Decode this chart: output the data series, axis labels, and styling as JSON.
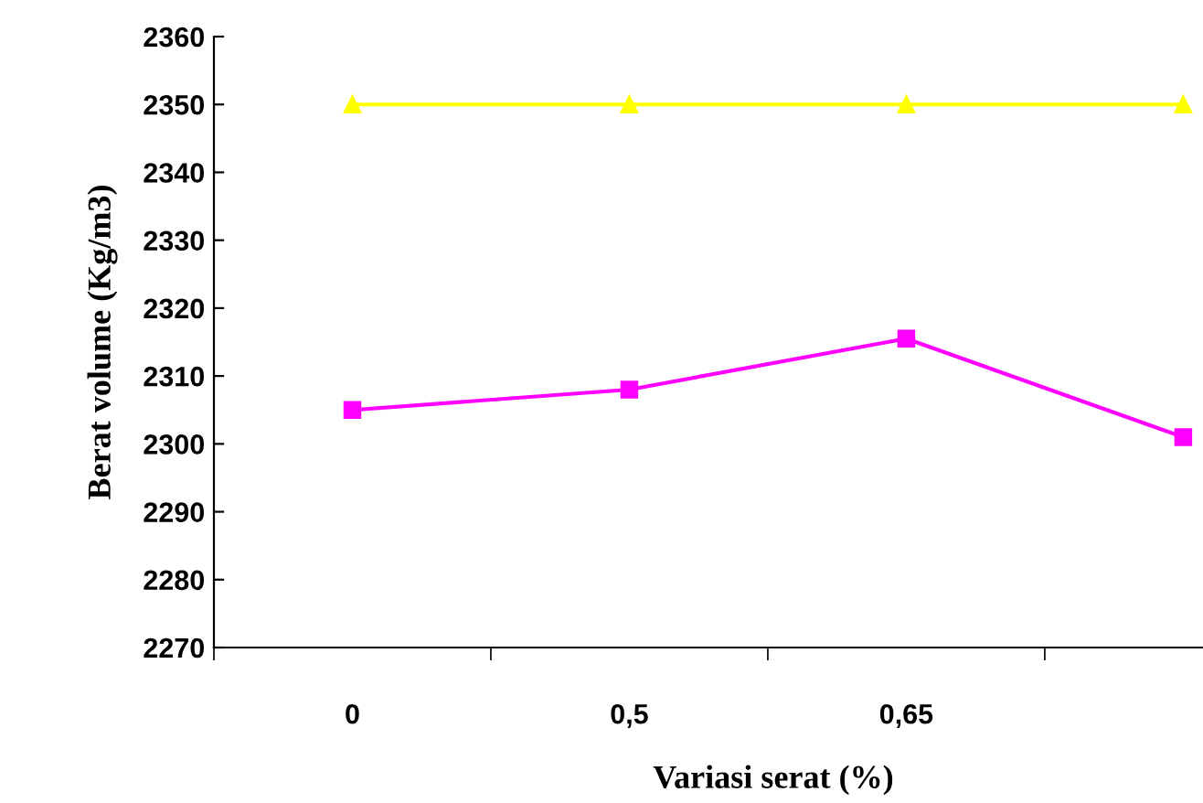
{
  "chart_data": {
    "type": "line",
    "xlabel": "Variasi serat (%)",
    "ylabel": "Berat volume (Kg/m3)",
    "categories": [
      "0",
      "0,5",
      "0,65",
      null
    ],
    "series": [
      {
        "color": "#ffff00",
        "values": [
          2350,
          2350,
          2350,
          2350
        ],
        "marker": "triangle"
      },
      {
        "color": "#ff00ff",
        "values": [
          2305,
          2308,
          2315.5,
          2301
        ],
        "marker": "square"
      }
    ],
    "ylim": [
      2270,
      2360
    ],
    "yticks": [
      2270,
      2280,
      2290,
      2300,
      2310,
      2320,
      2330,
      2340,
      2350,
      2360
    ],
    "grid": false,
    "legend": false
  }
}
